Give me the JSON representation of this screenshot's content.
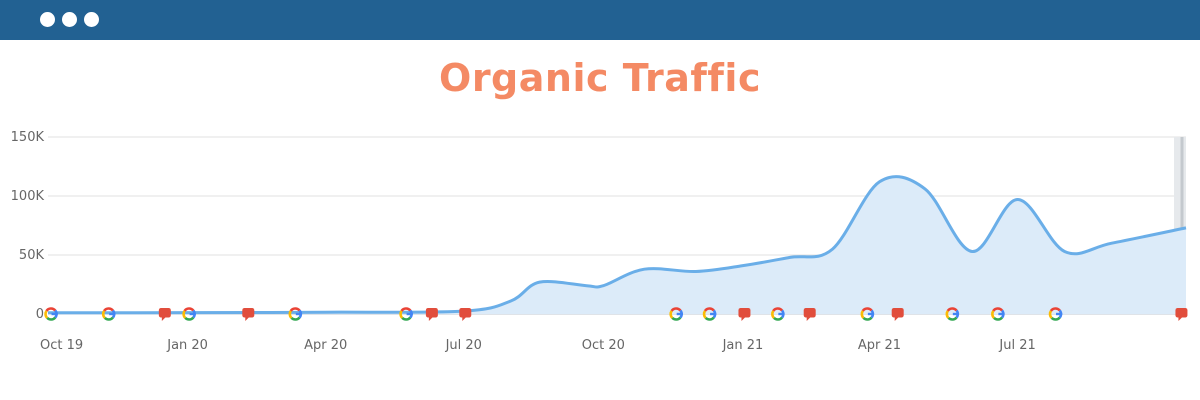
{
  "window": {
    "titlebar_color": "#226192",
    "window_controls": [
      "dot",
      "dot",
      "dot"
    ]
  },
  "chart_data": {
    "type": "area",
    "title": "Organic Traffic",
    "title_color": "#f48a64",
    "line_color": "#6aaee8",
    "fill_color": "#dcebf9",
    "grid": true,
    "xlabel": "",
    "ylabel": "",
    "ylim": [
      0,
      150000
    ],
    "yticks": [
      {
        "value": 0,
        "label": "0"
      },
      {
        "value": 50000,
        "label": "50K"
      },
      {
        "value": 100000,
        "label": "100K"
      },
      {
        "value": 150000,
        "label": "150K"
      }
    ],
    "x_start": "2019-10-01",
    "x_end": "2021-10-20",
    "xticks": [
      {
        "date": "2019-10-01",
        "label": "Oct 19"
      },
      {
        "date": "2020-01-01",
        "label": "Jan 20"
      },
      {
        "date": "2020-04-01",
        "label": "Apr 20"
      },
      {
        "date": "2020-07-01",
        "label": "Jul 20"
      },
      {
        "date": "2020-10-01",
        "label": "Oct 20"
      },
      {
        "date": "2021-01-01",
        "label": "Jan 21"
      },
      {
        "date": "2021-04-01",
        "label": "Apr 21"
      },
      {
        "date": "2021-07-01",
        "label": "Jul 21"
      }
    ],
    "series": [
      {
        "points": [
          {
            "x": "2019-10-01",
            "y": 1000
          },
          {
            "x": "2020-01-01",
            "y": 1200
          },
          {
            "x": "2020-04-01",
            "y": 1500
          },
          {
            "x": "2020-07-01",
            "y": 2500
          },
          {
            "x": "2020-08-01",
            "y": 11000
          },
          {
            "x": "2020-08-20",
            "y": 27000
          },
          {
            "x": "2020-09-20",
            "y": 24000
          },
          {
            "x": "2020-10-01",
            "y": 24000
          },
          {
            "x": "2020-10-28",
            "y": 38000
          },
          {
            "x": "2020-12-01",
            "y": 36000
          },
          {
            "x": "2021-01-01",
            "y": 41000
          },
          {
            "x": "2021-02-01",
            "y": 48000
          },
          {
            "x": "2021-03-01",
            "y": 55000
          },
          {
            "x": "2021-04-01",
            "y": 112000
          },
          {
            "x": "2021-05-01",
            "y": 106000
          },
          {
            "x": "2021-06-01",
            "y": 53000
          },
          {
            "x": "2021-07-01",
            "y": 97000
          },
          {
            "x": "2021-08-01",
            "y": 53000
          },
          {
            "x": "2021-09-01",
            "y": 60000
          },
          {
            "x": "2021-10-20",
            "y": 73000
          }
        ]
      }
    ],
    "markers": [
      {
        "kind": "google-update",
        "x": "2019-10-03"
      },
      {
        "kind": "google-update",
        "x": "2019-11-10"
      },
      {
        "kind": "note",
        "x": "2019-12-17"
      },
      {
        "kind": "google-update",
        "x": "2020-01-02"
      },
      {
        "kind": "note",
        "x": "2020-02-10"
      },
      {
        "kind": "google-update",
        "x": "2020-03-12"
      },
      {
        "kind": "google-update",
        "x": "2020-05-24"
      },
      {
        "kind": "note",
        "x": "2020-06-10"
      },
      {
        "kind": "note",
        "x": "2020-07-02"
      },
      {
        "kind": "google-update",
        "x": "2020-11-18"
      },
      {
        "kind": "google-update",
        "x": "2020-12-10"
      },
      {
        "kind": "note",
        "x": "2021-01-02"
      },
      {
        "kind": "google-update",
        "x": "2021-01-24"
      },
      {
        "kind": "note",
        "x": "2021-02-14"
      },
      {
        "kind": "google-update",
        "x": "2021-03-24"
      },
      {
        "kind": "note",
        "x": "2021-04-13"
      },
      {
        "kind": "google-update",
        "x": "2021-05-19"
      },
      {
        "kind": "google-update",
        "x": "2021-06-18"
      },
      {
        "kind": "google-update",
        "x": "2021-07-26"
      },
      {
        "kind": "note",
        "x": "2021-10-17"
      }
    ]
  }
}
